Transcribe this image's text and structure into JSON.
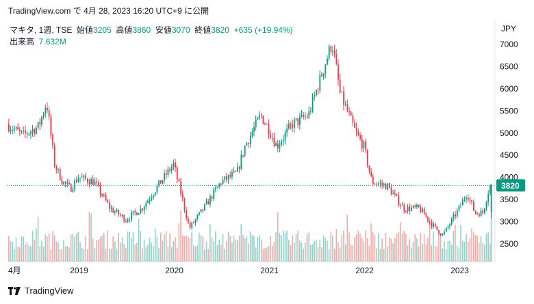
{
  "header": {
    "source": "TradingView.com",
    "text": "で 4月 28, 2023 16:20 UTC+9 に公開"
  },
  "legend": {
    "symbol": "マキタ, 1週, TSE",
    "open_label": "始値",
    "open": "3205",
    "high_label": "高値",
    "high": "3860",
    "low_label": "安値",
    "low": "3070",
    "close_label": "終値",
    "close": "3820",
    "change": "+635 (+19.94%)"
  },
  "volume": {
    "label": "出来高",
    "value": "7.632M"
  },
  "currency": "JPY",
  "price_tag": "3820",
  "footer": {
    "brand": "TradingView"
  },
  "colors": {
    "up": "#089981",
    "down": "#f23645",
    "vol_up": "#8ed3c7",
    "vol_down": "#f7a9a7",
    "last": "#089981"
  },
  "chart_data": {
    "type": "candlestick",
    "title": "マキタ, 1週, TSE",
    "ylabel": "JPY",
    "ylim": [
      2100,
      7250
    ],
    "y_ticks": [
      2500,
      3000,
      3500,
      4000,
      4500,
      5000,
      5500,
      6000,
      6500,
      7000
    ],
    "x_labels": [
      "4月",
      "2019",
      "2020",
      "2021",
      "2022",
      "2023"
    ],
    "last_price": 3820,
    "series": [
      {
        "name": "price",
        "points": [
          [
            "2018-04",
            5200
          ],
          [
            "2018-06",
            4950
          ],
          [
            "2018-08",
            5150
          ],
          [
            "2018-09",
            5700
          ],
          [
            "2018-10",
            4300
          ],
          [
            "2018-11",
            3900
          ],
          [
            "2018-12",
            3750
          ],
          [
            "2019-01",
            4000
          ],
          [
            "2019-03",
            3900
          ],
          [
            "2019-05",
            3300
          ],
          [
            "2019-07",
            3050
          ],
          [
            "2019-09",
            3300
          ],
          [
            "2019-11",
            3800
          ],
          [
            "2020-01",
            4300
          ],
          [
            "2020-02",
            3600
          ],
          [
            "2020-03",
            2850
          ],
          [
            "2020-05",
            3350
          ],
          [
            "2020-07",
            3900
          ],
          [
            "2020-09",
            4100
          ],
          [
            "2020-10",
            4700
          ],
          [
            "2020-12",
            5400
          ],
          [
            "2021-01",
            5100
          ],
          [
            "2021-02",
            4700
          ],
          [
            "2021-04",
            5200
          ],
          [
            "2021-06",
            5400
          ],
          [
            "2021-08",
            6500
          ],
          [
            "2021-09",
            7050
          ],
          [
            "2021-10",
            5900
          ],
          [
            "2021-12",
            5000
          ],
          [
            "2022-01",
            4700
          ],
          [
            "2022-02",
            3900
          ],
          [
            "2022-04",
            3800
          ],
          [
            "2022-06",
            3300
          ],
          [
            "2022-08",
            3300
          ],
          [
            "2022-10",
            2850
          ],
          [
            "2022-11",
            2700
          ],
          [
            "2023-01",
            3300
          ],
          [
            "2023-02",
            3650
          ],
          [
            "2023-03",
            3200
          ],
          [
            "2023-04",
            3205
          ],
          [
            "2023-04-28",
            3820
          ]
        ]
      }
    ]
  }
}
